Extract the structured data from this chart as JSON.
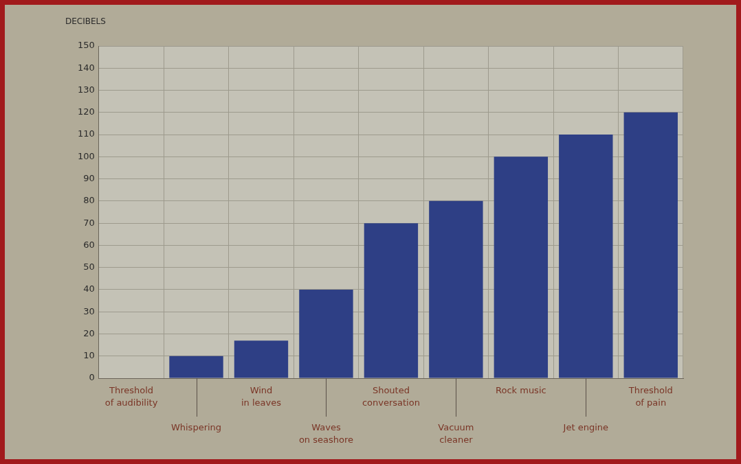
{
  "chart_data": {
    "type": "bar",
    "ylabel": "DECIBELS",
    "categories": [
      "Threshold\nof audibility",
      "Whispering",
      "Wind\nin leaves",
      "Waves\non seashore",
      "Shouted\nconversation",
      "Vacuum\ncleaner",
      "Rock music",
      "Jet engine",
      "Threshold\nof pain"
    ],
    "values": [
      0,
      10,
      17,
      40,
      70,
      80,
      100,
      110,
      120
    ],
    "color": "#2e3f85",
    "ylim": [
      0,
      150
    ],
    "yticks": [
      0,
      10,
      20,
      30,
      40,
      50,
      60,
      70,
      80,
      90,
      100,
      110,
      120,
      130,
      140,
      150
    ],
    "grid": true
  }
}
